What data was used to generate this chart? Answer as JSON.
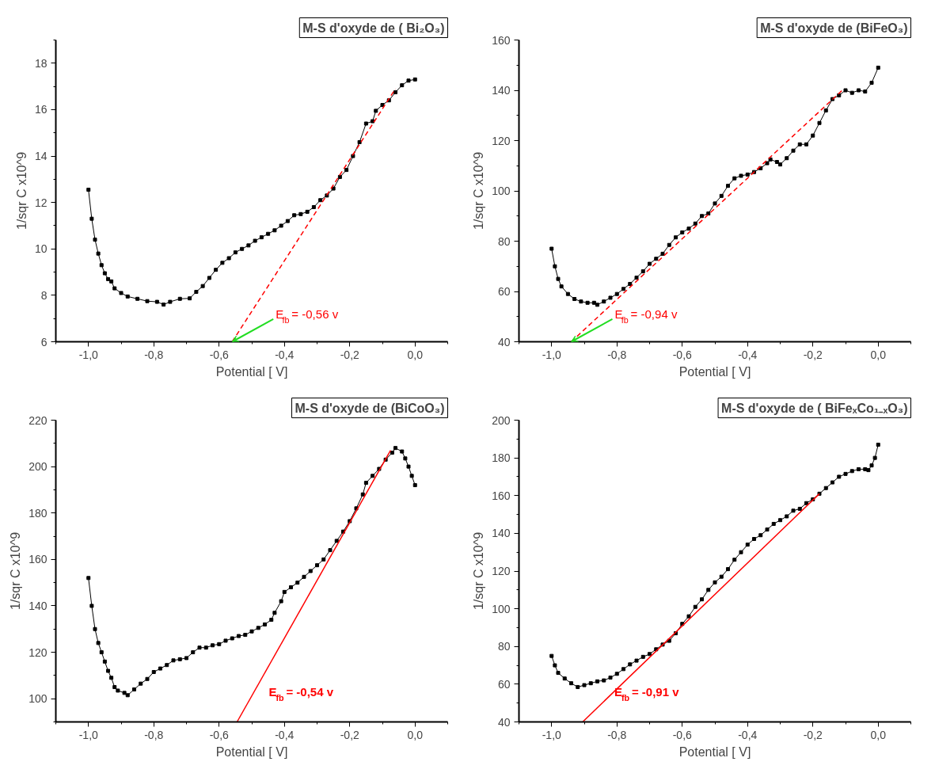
{
  "chart_data": [
    {
      "type": "line",
      "title": "M-S d'oxyde de ( Bi₂O₃)",
      "xlabel": "Potential [ V]",
      "ylabel": "1/sqr C x10^9",
      "grid": false,
      "xlim": [
        -1.1,
        0.1
      ],
      "xticks": [
        {
          "value": -1.0,
          "label": "-1,0"
        },
        {
          "value": -0.8,
          "label": "-0,8"
        },
        {
          "value": -0.6,
          "label": "-0,6"
        },
        {
          "value": -0.4,
          "label": "-0,4"
        },
        {
          "value": -0.2,
          "label": "-0,2"
        },
        {
          "value": 0.0,
          "label": "0,0"
        }
      ],
      "ylim": [
        6,
        19
      ],
      "yticks": [
        6,
        8,
        10,
        12,
        14,
        16,
        18
      ],
      "series": [
        {
          "color": "#000000",
          "marker": "square",
          "line_style": "solid",
          "x": [
            -1.0,
            -0.99,
            -0.98,
            -0.97,
            -0.96,
            -0.95,
            -0.94,
            -0.93,
            -0.92,
            -0.9,
            -0.88,
            -0.85,
            -0.82,
            -0.79,
            -0.77,
            -0.75,
            -0.72,
            -0.69,
            -0.67,
            -0.65,
            -0.63,
            -0.61,
            -0.59,
            -0.57,
            -0.55,
            -0.53,
            -0.51,
            -0.49,
            -0.47,
            -0.45,
            -0.43,
            -0.41,
            -0.39,
            -0.37,
            -0.35,
            -0.33,
            -0.31,
            -0.29,
            -0.27,
            -0.25,
            -0.23,
            -0.21,
            -0.19,
            -0.17,
            -0.15,
            -0.13,
            -0.12,
            -0.1,
            -0.08,
            -0.06,
            -0.04,
            -0.02,
            0.0
          ],
          "values": [
            12.55,
            11.3,
            10.4,
            9.8,
            9.3,
            8.95,
            8.7,
            8.6,
            8.3,
            8.1,
            7.95,
            7.85,
            7.75,
            7.72,
            7.6,
            7.72,
            7.85,
            7.87,
            8.15,
            8.4,
            8.75,
            9.1,
            9.4,
            9.6,
            9.85,
            10.0,
            10.15,
            10.35,
            10.5,
            10.65,
            10.8,
            11.0,
            11.2,
            11.45,
            11.5,
            11.6,
            11.8,
            12.1,
            12.3,
            12.6,
            13.1,
            13.4,
            14.0,
            14.6,
            15.4,
            15.5,
            15.95,
            16.2,
            16.4,
            16.75,
            17.05,
            17.25,
            17.3
          ]
        },
        {
          "type": "line",
          "color": "#ff0000",
          "marker": "none",
          "line_style": "dashed",
          "x": [
            -0.56,
            -0.06
          ],
          "values": [
            6,
            16.9
          ]
        }
      ],
      "annotations": [
        {
          "text": "E$_{fb}$ = -0,56 v",
          "x": -0.56,
          "y": 6
        }
      ]
    },
    {
      "type": "line",
      "title": "M-S d'oxyde de (BiFeO₃)",
      "xlabel": "Potential [ V]",
      "ylabel": "1/sqr C x10^9",
      "grid": false,
      "xlim": [
        -1.1,
        0.1
      ],
      "xticks": [
        {
          "value": -1.0,
          "label": "-1,0"
        },
        {
          "value": -0.8,
          "label": "-0,8"
        },
        {
          "value": -0.6,
          "label": "-0,6"
        },
        {
          "value": -0.4,
          "label": "-0,4"
        },
        {
          "value": -0.2,
          "label": "-0,2"
        },
        {
          "value": 0.0,
          "label": "0,0"
        }
      ],
      "ylim": [
        40,
        160
      ],
      "yticks": [
        40,
        60,
        80,
        100,
        120,
        140,
        160
      ],
      "series": [
        {
          "color": "#000000",
          "marker": "square",
          "line_style": "solid",
          "x": [
            -1.0,
            -0.99,
            -0.98,
            -0.97,
            -0.95,
            -0.93,
            -0.91,
            -0.89,
            -0.87,
            -0.86,
            -0.84,
            -0.82,
            -0.8,
            -0.78,
            -0.76,
            -0.74,
            -0.72,
            -0.7,
            -0.68,
            -0.66,
            -0.64,
            -0.62,
            -0.6,
            -0.58,
            -0.56,
            -0.54,
            -0.52,
            -0.5,
            -0.48,
            -0.46,
            -0.44,
            -0.42,
            -0.4,
            -0.38,
            -0.36,
            -0.34,
            -0.33,
            -0.31,
            -0.3,
            -0.28,
            -0.26,
            -0.24,
            -0.22,
            -0.2,
            -0.18,
            -0.16,
            -0.14,
            -0.12,
            -0.1,
            -0.08,
            -0.06,
            -0.04,
            -0.02,
            0.0
          ],
          "values": [
            77,
            70,
            65,
            62,
            59,
            57,
            56,
            55.5,
            55.5,
            54.7,
            56,
            57.5,
            59,
            61,
            63,
            65.5,
            68,
            71,
            73,
            75,
            78.5,
            81.5,
            83.5,
            85,
            87,
            90,
            91,
            95,
            98,
            102,
            105,
            106,
            106.5,
            107.5,
            109,
            111,
            112.5,
            111.5,
            110.5,
            113,
            116,
            118.5,
            118.5,
            122,
            127,
            132,
            136.5,
            138,
            140,
            139,
            140,
            139.5,
            143,
            149
          ]
        },
        {
          "type": "line",
          "color": "#ff0000",
          "marker": "none",
          "line_style": "dashed",
          "x": [
            -0.94,
            -0.11
          ],
          "values": [
            40,
            140
          ]
        }
      ],
      "annotations": [
        {
          "text": "E$_{fb}$ = -0,94 v",
          "x": -0.94,
          "y": 40
        }
      ]
    },
    {
      "type": "line",
      "title": "M-S d'oxyde de (BiCoO₃)",
      "xlabel": "Potential [ V]",
      "ylabel": "1/sqr C x10^9",
      "grid": false,
      "xlim": [
        -1.1,
        0.1
      ],
      "xticks": [
        {
          "value": -1.0,
          "label": "-1,0"
        },
        {
          "value": -0.8,
          "label": "-0,8"
        },
        {
          "value": -0.6,
          "label": "-0,6"
        },
        {
          "value": -0.4,
          "label": "-0,4"
        },
        {
          "value": -0.2,
          "label": "-0,2"
        },
        {
          "value": 0.0,
          "label": "0,0"
        }
      ],
      "ylim": [
        90,
        220
      ],
      "yticks": [
        100,
        120,
        140,
        160,
        180,
        200,
        220
      ],
      "series": [
        {
          "color": "#000000",
          "marker": "square",
          "line_style": "solid",
          "x": [
            -1.0,
            -0.99,
            -0.98,
            -0.97,
            -0.96,
            -0.95,
            -0.94,
            -0.93,
            -0.92,
            -0.91,
            -0.89,
            -0.88,
            -0.86,
            -0.84,
            -0.82,
            -0.8,
            -0.78,
            -0.76,
            -0.74,
            -0.72,
            -0.7,
            -0.68,
            -0.66,
            -0.64,
            -0.62,
            -0.6,
            -0.58,
            -0.56,
            -0.54,
            -0.52,
            -0.5,
            -0.48,
            -0.46,
            -0.44,
            -0.43,
            -0.41,
            -0.4,
            -0.38,
            -0.36,
            -0.34,
            -0.32,
            -0.3,
            -0.28,
            -0.26,
            -0.24,
            -0.22,
            -0.2,
            -0.18,
            -0.16,
            -0.15,
            -0.13,
            -0.11,
            -0.09,
            -0.07,
            -0.06,
            -0.04,
            -0.03,
            -0.02,
            -0.01,
            0.0
          ],
          "values": [
            152,
            140,
            130,
            124,
            120,
            116,
            112,
            109,
            105,
            103.5,
            102.5,
            101.5,
            104,
            106.5,
            108.5,
            111.5,
            113,
            114.5,
            116.5,
            117,
            117.5,
            120,
            122,
            122,
            123,
            123.5,
            125,
            126,
            127,
            127.5,
            129,
            130.5,
            132,
            134,
            137,
            142,
            146,
            148,
            150,
            152.5,
            155,
            157.5,
            160,
            164,
            168,
            172,
            176.5,
            182,
            188,
            193,
            196,
            199,
            203,
            206,
            208,
            206.5,
            203.5,
            200,
            196,
            192
          ]
        },
        {
          "type": "line",
          "color": "#ff0000",
          "marker": "none",
          "line_style": "solid",
          "x": [
            -0.545,
            -0.075
          ],
          "values": [
            90,
            207
          ]
        }
      ],
      "annotations": [
        "E$_{fb}$ = -0,54 v"
      ]
    },
    {
      "type": "line",
      "title": "M-S d'oxyde de ( BiFeₓCo₁₋ₓO₃)",
      "xlabel": "Potential [ V]",
      "ylabel": "1/sqr C x10^9",
      "grid": false,
      "xlim": [
        -1.1,
        0.1
      ],
      "xticks": [
        {
          "value": -1.0,
          "label": "-1,0"
        },
        {
          "value": -0.8,
          "label": "-0,8"
        },
        {
          "value": -0.6,
          "label": "-0,6"
        },
        {
          "value": -0.4,
          "label": "-0,4"
        },
        {
          "value": -0.2,
          "label": "-0,2"
        },
        {
          "value": 0.0,
          "label": "0,0"
        }
      ],
      "ylim": [
        40,
        200
      ],
      "yticks": [
        40,
        60,
        80,
        100,
        120,
        140,
        160,
        180,
        200
      ],
      "series": [
        {
          "color": "#000000",
          "marker": "square",
          "line_style": "solid",
          "x": [
            -1.0,
            -0.99,
            -0.98,
            -0.96,
            -0.94,
            -0.92,
            -0.9,
            -0.88,
            -0.86,
            -0.84,
            -0.82,
            -0.8,
            -0.78,
            -0.76,
            -0.74,
            -0.72,
            -0.7,
            -0.68,
            -0.66,
            -0.64,
            -0.62,
            -0.6,
            -0.58,
            -0.56,
            -0.54,
            -0.52,
            -0.5,
            -0.48,
            -0.46,
            -0.44,
            -0.42,
            -0.4,
            -0.38,
            -0.36,
            -0.34,
            -0.32,
            -0.3,
            -0.28,
            -0.26,
            -0.24,
            -0.22,
            -0.2,
            -0.18,
            -0.16,
            -0.14,
            -0.12,
            -0.1,
            -0.08,
            -0.06,
            -0.04,
            -0.03,
            -0.02,
            -0.01,
            0.0
          ],
          "values": [
            75,
            70,
            66,
            63,
            60.5,
            58.5,
            59.5,
            60.5,
            61.5,
            62,
            63.5,
            65.5,
            68,
            70.5,
            72.5,
            74.5,
            76,
            78.5,
            81,
            83,
            87,
            92,
            96,
            101,
            105,
            110,
            114,
            117,
            121,
            126,
            130,
            134,
            137,
            139,
            142,
            145,
            147,
            149,
            152,
            153,
            156,
            158,
            161,
            164,
            167,
            170,
            171.5,
            173,
            174,
            174,
            173.5,
            176,
            180,
            187
          ]
        },
        {
          "type": "line",
          "color": "#ff0000",
          "marker": "none",
          "line_style": "solid",
          "x": [
            -0.905,
            -0.18
          ],
          "values": [
            40,
            161
          ]
        }
      ],
      "annotations": [
        "E$_{fb}$ = -0,91 v"
      ]
    }
  ]
}
